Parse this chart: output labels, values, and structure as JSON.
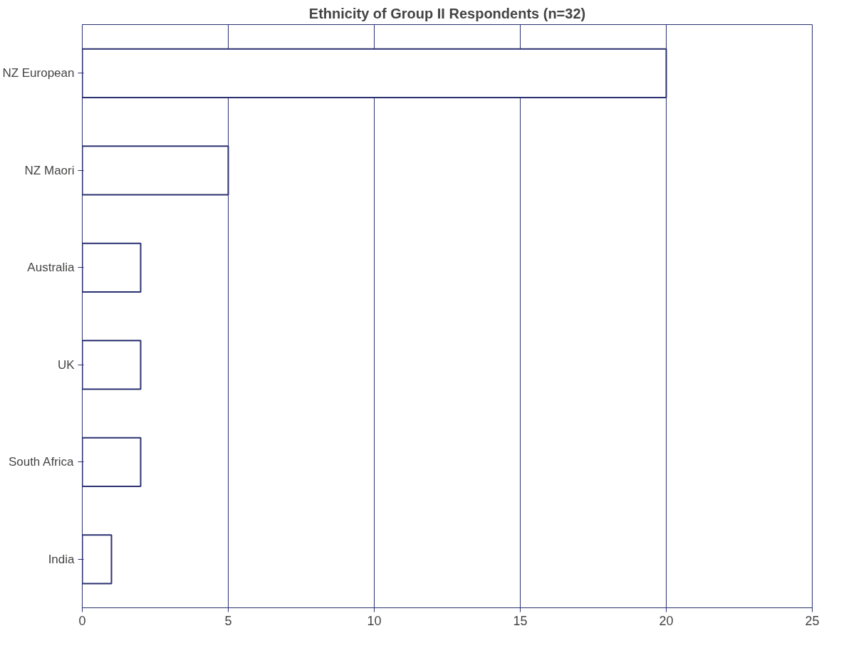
{
  "chart_data": {
    "type": "bar",
    "orientation": "horizontal",
    "title": "Ethnicity of Group II Respondents (n=32)",
    "categories": [
      "NZ European",
      "NZ Maori",
      "Australia",
      "UK",
      "South Africa",
      "India"
    ],
    "values": [
      20,
      5,
      2,
      2,
      2,
      1
    ],
    "color": "#ffffff",
    "xlim": [
      0,
      25
    ],
    "xticks": [
      0,
      5,
      10,
      15,
      20,
      25
    ],
    "grid": "x"
  }
}
